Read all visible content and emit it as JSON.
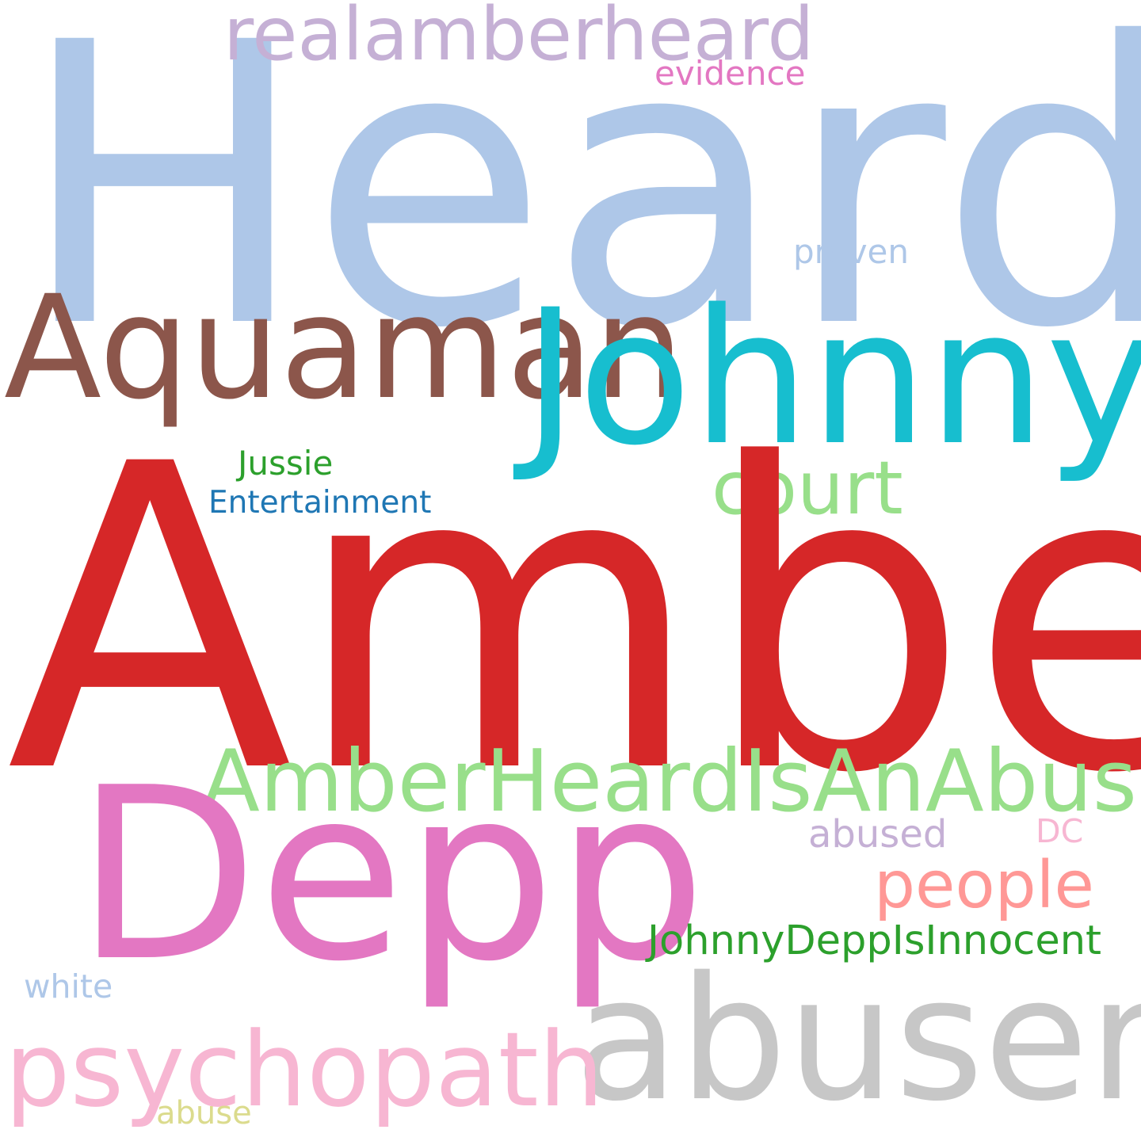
{
  "words": {
    "heard": {
      "text": "Heard",
      "color": "#aec7e8"
    },
    "realamberheard": {
      "text": "realamberheard",
      "color": "#c5b0d5"
    },
    "evidence": {
      "text": "evidence",
      "color": "#e377c2"
    },
    "proven": {
      "text": "proven",
      "color": "#aec7e8"
    },
    "aquaman": {
      "text": "Aquaman",
      "color": "#8c564b"
    },
    "johnny": {
      "text": "Johnny",
      "color": "#17becf"
    },
    "jussie": {
      "text": "Jussie",
      "color": "#2ca02c"
    },
    "entertainment": {
      "text": "Entertainment",
      "color": "#1f77b4"
    },
    "court": {
      "text": "court",
      "color": "#98df8a"
    },
    "amber": {
      "text": "Amber",
      "color": "#d62728"
    },
    "amberheardisanabuser": {
      "text": "AmberHeardIsAnAbuser",
      "color": "#98df8a"
    },
    "abused": {
      "text": "abused",
      "color": "#c5b0d5"
    },
    "dc": {
      "text": "DC",
      "color": "#f7b6d2"
    },
    "depp": {
      "text": "Depp",
      "color": "#e377c2"
    },
    "people": {
      "text": "people",
      "color": "#ff9896"
    },
    "johnnydeppisinnocent": {
      "text": "JohnnyDeppIsInnocent",
      "color": "#2ca02c"
    },
    "white": {
      "text": "white",
      "color": "#aec7e8"
    },
    "abuser": {
      "text": "abuser",
      "color": "#c7c7c7"
    },
    "psychopath": {
      "text": "psychopath",
      "color": "#f7b6d2"
    },
    "abuse": {
      "text": "abuse",
      "color": "#dbdb8d"
    }
  }
}
